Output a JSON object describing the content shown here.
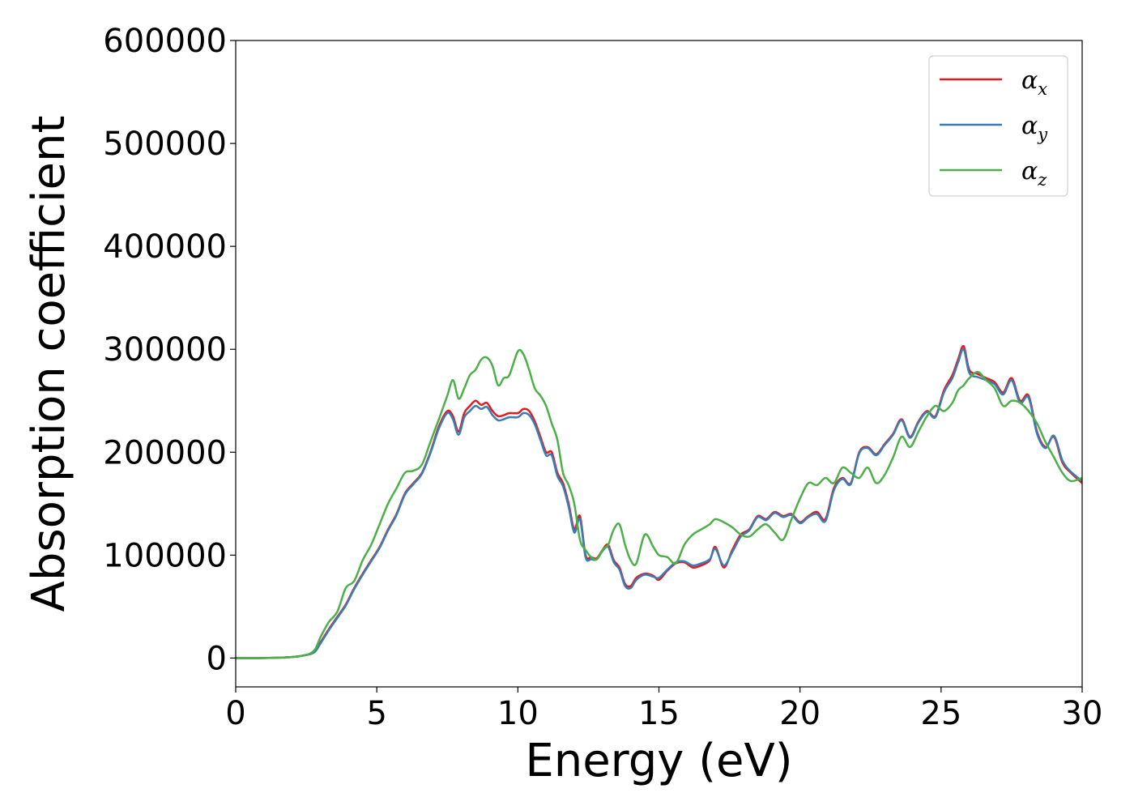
{
  "chart_data": {
    "type": "line",
    "title": "",
    "xlabel": "Energy (eV)",
    "ylabel": "Absorption coefficient",
    "xlim": [
      0,
      30
    ],
    "ylim": [
      -28000,
      600000
    ],
    "xticks": [
      "0",
      "5",
      "10",
      "15",
      "20",
      "25",
      "30"
    ],
    "yticks": [
      "0",
      "100000",
      "200000",
      "300000",
      "400000",
      "500000",
      "600000"
    ],
    "grid": false,
    "legend_position": "top-right",
    "series": [
      {
        "name": "αx",
        "symbol": "α",
        "subscript": "x",
        "color": "#e41a1c",
        "x": [
          0,
          1,
          2,
          2.5,
          2.8,
          3,
          3.3,
          3.6,
          3.9,
          4.2,
          4.5,
          4.8,
          5.1,
          5.4,
          5.7,
          6.0,
          6.3,
          6.6,
          6.9,
          7.2,
          7.5,
          7.7,
          7.9,
          8.1,
          8.3,
          8.5,
          8.7,
          8.9,
          9.1,
          9.3,
          9.5,
          9.7,
          10.0,
          10.2,
          10.4,
          10.6,
          10.8,
          11.0,
          11.2,
          11.4,
          11.6,
          11.8,
          12.0,
          12.2,
          12.4,
          12.6,
          12.8,
          13.0,
          13.2,
          13.4,
          13.6,
          13.8,
          14.0,
          14.2,
          14.5,
          14.8,
          15.0,
          15.3,
          15.6,
          15.9,
          16.2,
          16.5,
          16.8,
          17.0,
          17.3,
          17.6,
          17.9,
          18.2,
          18.5,
          18.8,
          19.1,
          19.4,
          19.7,
          20.0,
          20.3,
          20.6,
          20.9,
          21.2,
          21.5,
          21.8,
          22.1,
          22.4,
          22.7,
          23.0,
          23.3,
          23.6,
          23.9,
          24.2,
          24.5,
          24.8,
          25.1,
          25.4,
          25.6,
          25.8,
          26.0,
          26.3,
          26.6,
          26.9,
          27.2,
          27.5,
          27.8,
          28.1,
          28.4,
          28.7,
          29.0,
          29.3,
          29.6,
          30.0
        ],
        "y": [
          0,
          0,
          1000,
          3000,
          6000,
          15000,
          28000,
          40000,
          52000,
          68000,
          82000,
          95000,
          108000,
          125000,
          140000,
          160000,
          170000,
          180000,
          200000,
          225000,
          240000,
          235000,
          220000,
          238000,
          245000,
          250000,
          246000,
          248000,
          240000,
          235000,
          236000,
          238000,
          238000,
          242000,
          240000,
          230000,
          215000,
          200000,
          200000,
          180000,
          170000,
          150000,
          125000,
          138000,
          100000,
          98000,
          97000,
          105000,
          110000,
          95000,
          88000,
          72000,
          70000,
          78000,
          82000,
          80000,
          76000,
          85000,
          92000,
          93000,
          88000,
          90000,
          95000,
          108000,
          88000,
          105000,
          120000,
          125000,
          138000,
          135000,
          142000,
          138000,
          140000,
          132000,
          138000,
          142000,
          135000,
          165000,
          175000,
          170000,
          200000,
          205000,
          198000,
          208000,
          218000,
          232000,
          215000,
          230000,
          240000,
          235000,
          260000,
          275000,
          290000,
          303000,
          280000,
          276000,
          272000,
          268000,
          258000,
          272000,
          250000,
          255000,
          220000,
          205000,
          215000,
          190000,
          180000,
          170000
        ]
      },
      {
        "name": "αy",
        "symbol": "α",
        "subscript": "y",
        "color": "#377eb8",
        "x": [
          0,
          1,
          2,
          2.5,
          2.8,
          3,
          3.3,
          3.6,
          3.9,
          4.2,
          4.5,
          4.8,
          5.1,
          5.4,
          5.7,
          6.0,
          6.3,
          6.6,
          6.9,
          7.2,
          7.5,
          7.7,
          7.9,
          8.1,
          8.3,
          8.5,
          8.7,
          8.9,
          9.1,
          9.3,
          9.5,
          9.7,
          10.0,
          10.2,
          10.4,
          10.6,
          10.8,
          11.0,
          11.2,
          11.4,
          11.6,
          11.8,
          12.0,
          12.2,
          12.4,
          12.6,
          12.8,
          13.0,
          13.2,
          13.4,
          13.6,
          13.8,
          14.0,
          14.2,
          14.5,
          14.8,
          15.0,
          15.3,
          15.6,
          15.9,
          16.2,
          16.5,
          16.8,
          17.0,
          17.3,
          17.6,
          17.9,
          18.2,
          18.5,
          18.8,
          19.1,
          19.4,
          19.7,
          20.0,
          20.3,
          20.6,
          20.9,
          21.2,
          21.5,
          21.8,
          22.1,
          22.4,
          22.7,
          23.0,
          23.3,
          23.6,
          23.9,
          24.2,
          24.5,
          24.8,
          25.1,
          25.4,
          25.6,
          25.8,
          26.0,
          26.3,
          26.6,
          26.9,
          27.2,
          27.5,
          27.8,
          28.1,
          28.4,
          28.7,
          29.0,
          29.3,
          29.6,
          30.0
        ],
        "y": [
          0,
          0,
          1000,
          3000,
          6000,
          14000,
          27000,
          39000,
          51000,
          67000,
          81000,
          94000,
          107000,
          124000,
          139000,
          159000,
          169000,
          179000,
          199000,
          223000,
          238000,
          232000,
          217000,
          234000,
          240000,
          245000,
          242000,
          244000,
          236000,
          231000,
          232000,
          234000,
          234000,
          238000,
          236000,
          227000,
          212000,
          197000,
          197000,
          177000,
          167000,
          147000,
          122000,
          135000,
          98000,
          96000,
          96000,
          104000,
          108000,
          93000,
          86000,
          70000,
          68000,
          76000,
          81000,
          79000,
          78000,
          86000,
          93000,
          94000,
          90000,
          92000,
          96000,
          106000,
          90000,
          103000,
          118000,
          124000,
          137000,
          134000,
          141000,
          137000,
          139000,
          131000,
          137000,
          140000,
          133000,
          163000,
          174000,
          169000,
          199000,
          204000,
          197000,
          207000,
          217000,
          231000,
          214000,
          229000,
          239000,
          234000,
          258000,
          272000,
          287000,
          300000,
          277000,
          273000,
          270000,
          266000,
          256000,
          270000,
          248000,
          253000,
          218000,
          204000,
          216000,
          192000,
          181000,
          172000
        ]
      },
      {
        "name": "αz",
        "symbol": "α",
        "subscript": "z",
        "color": "#4daf4a",
        "x": [
          0,
          1,
          2,
          2.5,
          2.8,
          3,
          3.3,
          3.6,
          3.9,
          4.2,
          4.5,
          4.8,
          5.1,
          5.4,
          5.7,
          6.0,
          6.3,
          6.6,
          6.9,
          7.2,
          7.5,
          7.7,
          7.9,
          8.1,
          8.3,
          8.5,
          8.7,
          8.9,
          9.1,
          9.3,
          9.5,
          9.7,
          10.0,
          10.2,
          10.4,
          10.6,
          10.8,
          11.0,
          11.2,
          11.4,
          11.6,
          11.8,
          12.0,
          12.2,
          12.4,
          12.6,
          12.8,
          13.0,
          13.2,
          13.4,
          13.6,
          13.8,
          14.0,
          14.2,
          14.5,
          14.8,
          15.0,
          15.3,
          15.6,
          15.9,
          16.2,
          16.5,
          16.8,
          17.0,
          17.3,
          17.6,
          17.9,
          18.2,
          18.5,
          18.8,
          19.1,
          19.4,
          19.7,
          20.0,
          20.3,
          20.6,
          20.9,
          21.2,
          21.5,
          21.8,
          22.1,
          22.4,
          22.7,
          23.0,
          23.3,
          23.6,
          23.9,
          24.2,
          24.5,
          24.8,
          25.1,
          25.4,
          25.6,
          25.8,
          26.0,
          26.3,
          26.6,
          26.9,
          27.2,
          27.5,
          27.8,
          28.1,
          28.4,
          28.7,
          29.0,
          29.3,
          29.6,
          30.0
        ],
        "y": [
          0,
          0,
          1000,
          3000,
          8000,
          20000,
          35000,
          45000,
          68000,
          75000,
          95000,
          110000,
          130000,
          150000,
          165000,
          180000,
          182000,
          188000,
          210000,
          232000,
          255000,
          270000,
          252000,
          262000,
          275000,
          280000,
          290000,
          292000,
          284000,
          265000,
          272000,
          275000,
          298000,
          295000,
          280000,
          262000,
          255000,
          245000,
          228000,
          212000,
          180000,
          168000,
          150000,
          115000,
          105000,
          98000,
          96000,
          105000,
          110000,
          125000,
          130000,
          110000,
          95000,
          92000,
          120000,
          108000,
          100000,
          98000,
          92000,
          110000,
          120000,
          125000,
          130000,
          135000,
          132000,
          127000,
          120000,
          118000,
          125000,
          130000,
          122000,
          115000,
          135000,
          155000,
          170000,
          168000,
          175000,
          170000,
          185000,
          180000,
          175000,
          185000,
          170000,
          178000,
          195000,
          215000,
          205000,
          220000,
          235000,
          245000,
          240000,
          248000,
          260000,
          265000,
          272000,
          278000,
          270000,
          262000,
          245000,
          250000,
          248000,
          240000,
          228000,
          210000,
          195000,
          180000,
          172000,
          175000
        ]
      }
    ]
  }
}
